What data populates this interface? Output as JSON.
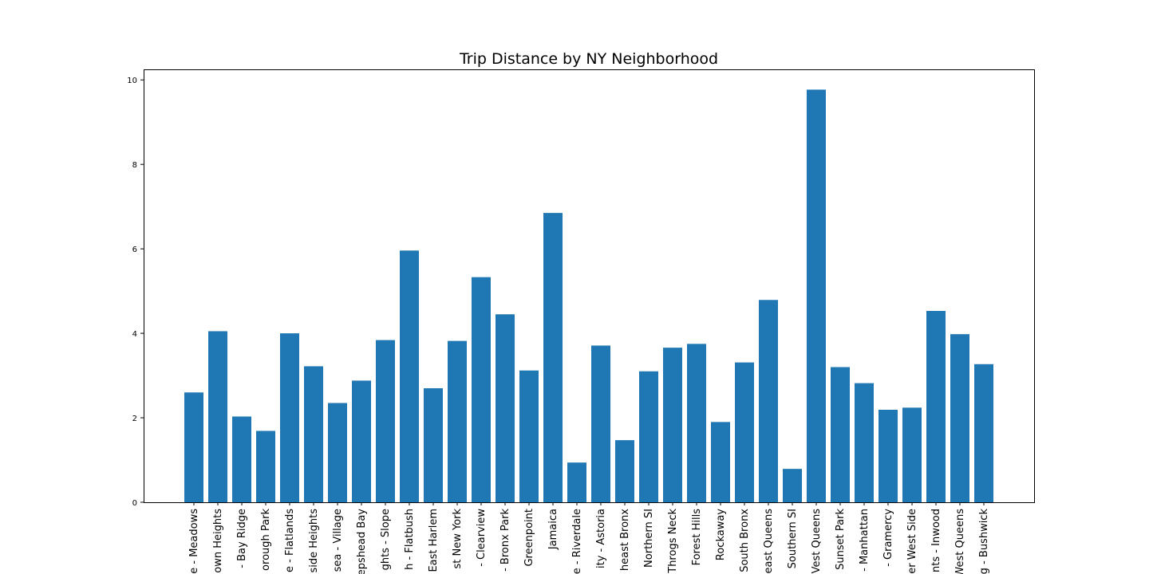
{
  "chart_data": {
    "type": "bar",
    "title": "Trip Distance by NY Neighborhood",
    "xlabel": "",
    "ylabel": "",
    "ylim": [
      0,
      10.25
    ],
    "yticks": [
      0,
      2,
      4,
      6,
      8,
      10
    ],
    "grid": false,
    "bar_color": "#1f77b4",
    "categories": [
      "e - Meadows",
      "own Heights",
      "- Bay Ridge",
      "orough Park",
      "e - Flatlands",
      "side Heights",
      "sea - Village",
      "epshead Bay",
      "ghts - Slope",
      "h - Flatbush",
      "East Harlem",
      "st New York",
      "- Clearview",
      "- Bronx Park",
      "Greenpoint",
      "Jamaica",
      "e - Riverdale",
      "ity - Astoria",
      "heast Bronx",
      "Northern SI",
      "Throgs Neck",
      "Forest Hills",
      "Rockaway",
      "South Bronx",
      "east Queens",
      "Southern SI",
      "Vest Queens",
      "Sunset Park",
      "- Manhattan",
      "- Gramercy",
      "er West Side",
      "nts - Inwood",
      "West Queens",
      "g - Bushwick"
    ],
    "values": [
      2.6,
      4.05,
      2.03,
      1.69,
      4.0,
      3.22,
      2.35,
      2.88,
      3.84,
      5.96,
      2.7,
      3.82,
      5.33,
      4.45,
      3.12,
      6.85,
      0.94,
      3.71,
      1.47,
      3.1,
      3.66,
      3.75,
      1.9,
      3.31,
      4.79,
      0.79,
      9.77,
      3.2,
      2.82,
      2.19,
      2.24,
      4.53,
      3.98,
      3.27
    ]
  }
}
